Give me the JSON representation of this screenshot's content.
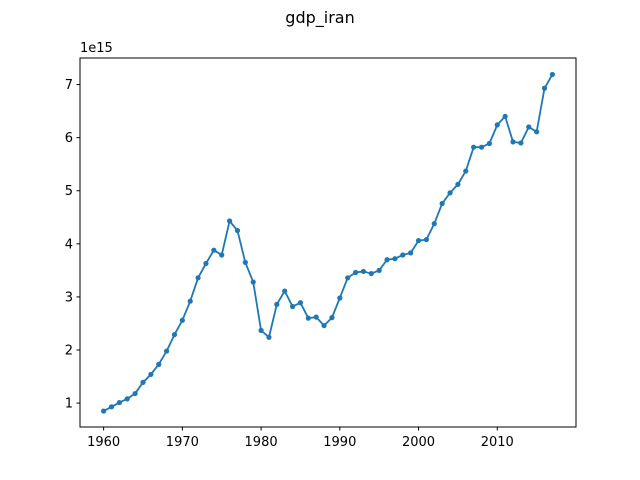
{
  "chart_data": {
    "type": "line",
    "title": "gdp_iran",
    "xlabel": "",
    "ylabel": "",
    "y_offset_label": "1e15",
    "xlim": [
      1957,
      2020
    ],
    "ylim": [
      0.55,
      7.5
    ],
    "xticks": [
      1960,
      1970,
      1980,
      1990,
      2000,
      2010
    ],
    "yticks": [
      1,
      2,
      3,
      4,
      5,
      6,
      7
    ],
    "grid": false,
    "line_color": "#1f77b4",
    "marker": "circle",
    "series": [
      {
        "x": [
          1960,
          1961,
          1962,
          1963,
          1964,
          1965,
          1966,
          1967,
          1968,
          1969,
          1970,
          1971,
          1972,
          1973,
          1974,
          1975,
          1976,
          1977,
          1978,
          1979,
          1980,
          1981,
          1982,
          1983,
          1984,
          1985,
          1986,
          1987,
          1988,
          1989,
          1990,
          1991,
          1992,
          1993,
          1994,
          1995,
          1996,
          1997,
          1998,
          1999,
          2000,
          2001,
          2002,
          2003,
          2004,
          2005,
          2006,
          2007,
          2008,
          2009,
          2010,
          2011,
          2012,
          2013,
          2014,
          2015,
          2016,
          2017
        ],
        "values": [
          0.85,
          0.93,
          1.01,
          1.08,
          1.18,
          1.39,
          1.54,
          1.73,
          1.98,
          2.29,
          2.56,
          2.92,
          3.36,
          3.63,
          3.88,
          3.79,
          4.43,
          4.25,
          3.65,
          3.28,
          2.37,
          2.24,
          2.86,
          3.11,
          2.82,
          2.89,
          2.6,
          2.62,
          2.46,
          2.61,
          2.98,
          3.36,
          3.46,
          3.48,
          3.44,
          3.5,
          3.7,
          3.72,
          3.79,
          3.83,
          4.06,
          4.08,
          4.38,
          4.76,
          4.96,
          5.12,
          5.37,
          5.82,
          5.82,
          5.89,
          6.24,
          6.4,
          5.92,
          5.9,
          6.2,
          6.11,
          6.93,
          7.19
        ]
      }
    ]
  }
}
